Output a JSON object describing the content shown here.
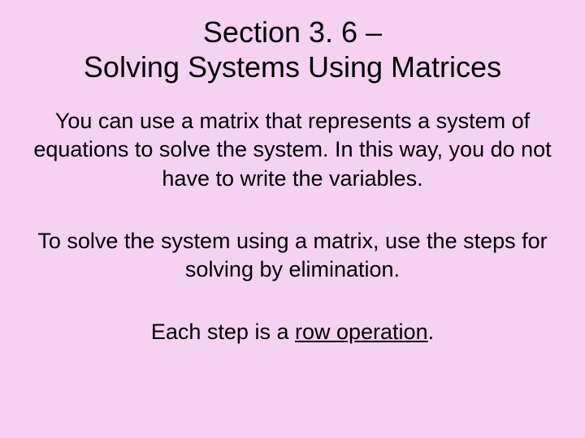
{
  "slide": {
    "background_color": "#f5d1f2",
    "text_color": "#000000",
    "title": {
      "line1": "Section 3. 6 –",
      "line2": "Solving Systems Using Matrices",
      "font_size_pt": 36,
      "font_weight": "normal"
    },
    "paragraph1": {
      "text": "You can use a matrix that represents a system of equations to solve the system.  In this way, you do not have to write the variables.",
      "font_size_pt": 27
    },
    "paragraph2": {
      "text": "To solve the system using a matrix, use the steps for solving by elimination.",
      "font_size_pt": 27
    },
    "paragraph3": {
      "prefix": "Each step is a ",
      "term": "row operation",
      "suffix": ".",
      "font_size_pt": 27
    }
  }
}
